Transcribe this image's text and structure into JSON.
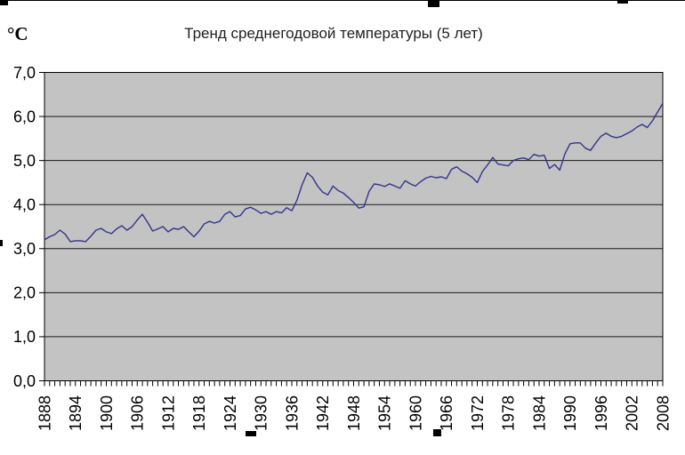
{
  "chart": {
    "title": "Тренд среднегодовой температуры (5 лет)",
    "y_axis_unit_label": "°C"
  },
  "chart_data": {
    "type": "line",
    "title": "Тренд среднегодовой температуры (5 лет)",
    "ylabel": "°C",
    "xlabel": "",
    "ylim": [
      0.0,
      7.0
    ],
    "ytick_interval": 1.0,
    "ytick_labels": [
      "0,0",
      "1,0",
      "2,0",
      "3,0",
      "4,0",
      "5,0",
      "6,0",
      "7,0"
    ],
    "xtick_labels": [
      "1888",
      "1894",
      "1900",
      "1906",
      "1912",
      "1918",
      "1924",
      "1930",
      "1936",
      "1942",
      "1948",
      "1954",
      "1960",
      "1966",
      "1972",
      "1978",
      "1984",
      "1990",
      "1996",
      "2002",
      "2008"
    ],
    "grid": "horizontal",
    "legend": "none",
    "plot_background": "#c3c3c3",
    "grid_color": "#1a1a1a",
    "line_color": "#34348c",
    "x": [
      1888,
      1889,
      1890,
      1891,
      1892,
      1893,
      1894,
      1895,
      1896,
      1897,
      1898,
      1899,
      1900,
      1901,
      1902,
      1903,
      1904,
      1905,
      1906,
      1907,
      1908,
      1909,
      1910,
      1911,
      1912,
      1913,
      1914,
      1915,
      1916,
      1917,
      1918,
      1919,
      1920,
      1921,
      1922,
      1923,
      1924,
      1925,
      1926,
      1927,
      1928,
      1929,
      1930,
      1931,
      1932,
      1933,
      1934,
      1935,
      1936,
      1937,
      1938,
      1939,
      1940,
      1941,
      1942,
      1943,
      1944,
      1945,
      1946,
      1947,
      1948,
      1949,
      1950,
      1951,
      1952,
      1953,
      1954,
      1955,
      1956,
      1957,
      1958,
      1959,
      1960,
      1961,
      1962,
      1963,
      1964,
      1965,
      1966,
      1967,
      1968,
      1969,
      1970,
      1971,
      1972,
      1973,
      1974,
      1975,
      1976,
      1977,
      1978,
      1979,
      1980,
      1981,
      1982,
      1983,
      1984,
      1985,
      1986,
      1987,
      1988,
      1989,
      1990,
      1991,
      1992,
      1993,
      1994,
      1995,
      1996,
      1997,
      1998,
      1999,
      2000,
      2001,
      2002,
      2003,
      2004,
      2005,
      2006,
      2007,
      2008
    ],
    "values": [
      3.2,
      3.27,
      3.32,
      3.42,
      3.33,
      3.16,
      3.18,
      3.18,
      3.16,
      3.28,
      3.42,
      3.46,
      3.38,
      3.34,
      3.45,
      3.52,
      3.42,
      3.5,
      3.65,
      3.78,
      3.6,
      3.4,
      3.45,
      3.5,
      3.38,
      3.46,
      3.44,
      3.5,
      3.38,
      3.27,
      3.4,
      3.56,
      3.62,
      3.58,
      3.62,
      3.78,
      3.84,
      3.72,
      3.75,
      3.9,
      3.94,
      3.88,
      3.8,
      3.84,
      3.78,
      3.84,
      3.81,
      3.93,
      3.86,
      4.1,
      4.45,
      4.72,
      4.62,
      4.42,
      4.28,
      4.22,
      4.42,
      4.32,
      4.26,
      4.16,
      4.05,
      3.92,
      3.95,
      4.3,
      4.47,
      4.45,
      4.41,
      4.47,
      4.42,
      4.37,
      4.54,
      4.47,
      4.42,
      4.52,
      4.6,
      4.64,
      4.61,
      4.63,
      4.59,
      4.8,
      4.86,
      4.76,
      4.7,
      4.62,
      4.5,
      4.75,
      4.9,
      5.07,
      4.92,
      4.9,
      4.88,
      5.0,
      5.04,
      5.06,
      5.02,
      5.14,
      5.1,
      5.12,
      4.82,
      4.91,
      4.78,
      5.15,
      5.38,
      5.4,
      5.4,
      5.28,
      5.23,
      5.4,
      5.55,
      5.62,
      5.55,
      5.52,
      5.55,
      5.61,
      5.67,
      5.76,
      5.82,
      5.75,
      5.9,
      6.1,
      6.3
    ]
  }
}
